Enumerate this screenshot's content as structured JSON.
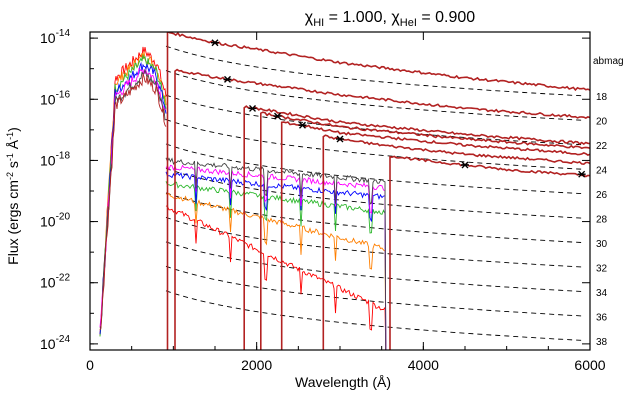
{
  "chart_data": {
    "type": "line",
    "title_parts": {
      "chi": "χ",
      "sub_hi": "HI",
      "val_hi": " = 1.000, ",
      "sub_hei": "HeI",
      "val_hei": " = 0.900"
    },
    "xlabel": "Wavelength (Å)",
    "ylabel_parts": {
      "main": "Flux (ergs cm",
      "e1": "-2",
      "s": " s",
      "e2": "-1",
      "a": " Å",
      "e3": "-1",
      "close": ")"
    },
    "xlim": [
      0,
      6000
    ],
    "ylim_log10": [
      -24.2,
      -13.8
    ],
    "x_ticks": [
      {
        "value": 0,
        "label": "0"
      },
      {
        "value": 2000,
        "label": "2000"
      },
      {
        "value": 4000,
        "label": "4000"
      },
      {
        "value": 6000,
        "label": "6000"
      }
    ],
    "y_ticks": [
      {
        "exp": -14,
        "base": "10",
        "sup": "-14"
      },
      {
        "exp": -16,
        "base": "10",
        "sup": "-16"
      },
      {
        "exp": -18,
        "base": "10",
        "sup": "-18"
      },
      {
        "exp": -20,
        "base": "10",
        "sup": "-20"
      },
      {
        "exp": -22,
        "base": "10",
        "sup": "-22"
      },
      {
        "exp": -24,
        "base": "10",
        "sup": "-24"
      }
    ],
    "abmag_header": "abmag",
    "abmag_lines": [
      {
        "label": "18",
        "log_at_6000": -15.9
      },
      {
        "label": "20",
        "log_at_6000": -16.7
      },
      {
        "label": "22",
        "log_at_6000": -17.5
      },
      {
        "label": "24",
        "log_at_6000": -18.3
      },
      {
        "label": "26",
        "log_at_6000": -19.1
      },
      {
        "label": "28",
        "log_at_6000": -19.9
      },
      {
        "label": "30",
        "log_at_6000": -20.7
      },
      {
        "label": "32",
        "log_at_6000": -21.5
      },
      {
        "label": "34",
        "log_at_6000": -22.3
      },
      {
        "label": "36",
        "log_at_6000": -23.1
      },
      {
        "label": "38",
        "log_at_6000": -23.9
      }
    ],
    "redshifted_spectra": [
      {
        "color": "#b22222",
        "cutoff": 930,
        "x": [
          930,
          1500,
          3000,
          4500,
          6000
        ],
        "log": [
          -13.8,
          -14.15,
          -14.8,
          -15.3,
          -15.7
        ]
      },
      {
        "color": "#b22222",
        "cutoff": 1020,
        "x": [
          1020,
          1650,
          3000,
          4500,
          6000
        ],
        "log": [
          -15.05,
          -15.35,
          -15.85,
          -16.3,
          -16.6
        ]
      },
      {
        "color": "#b22222",
        "cutoff": 1850,
        "x": [
          1850,
          2000,
          3000,
          4500,
          6000
        ],
        "log": [
          -16.25,
          -16.3,
          -16.75,
          -17.15,
          -17.45
        ]
      },
      {
        "color": "#b22222",
        "cutoff": 2050,
        "x": [
          2050,
          2250,
          3000,
          4500,
          6000
        ],
        "log": [
          -16.45,
          -16.55,
          -16.9,
          -17.3,
          -17.6
        ]
      },
      {
        "color": "#b22222",
        "cutoff": 2300,
        "x": [
          2300,
          2550,
          3000,
          4500,
          6000
        ],
        "log": [
          -16.75,
          -16.85,
          -17.1,
          -17.5,
          -17.8
        ]
      },
      {
        "color": "#b22222",
        "cutoff": 2800,
        "x": [
          2800,
          3000,
          3500,
          4500,
          6000
        ],
        "log": [
          -17.2,
          -17.3,
          -17.5,
          -17.8,
          -18.1
        ]
      },
      {
        "color": "#b22222",
        "cutoff": 3600,
        "x": [
          3600,
          4000,
          4500,
          5000,
          6000
        ],
        "log": [
          -17.85,
          -18.0,
          -18.15,
          -18.3,
          -18.5
        ]
      }
    ],
    "markers": [
      {
        "x": 1500,
        "log": -14.15
      },
      {
        "x": 1650,
        "log": -15.35
      },
      {
        "x": 1950,
        "log": -16.3
      },
      {
        "x": 2250,
        "log": -16.55
      },
      {
        "x": 2550,
        "log": -16.85
      },
      {
        "x": 3000,
        "log": -17.3
      },
      {
        "x": 4500,
        "log": -18.15
      },
      {
        "x": 5900,
        "log": -18.45
      }
    ],
    "colored_spectra": [
      {
        "color": "#ff0000",
        "cutoff": 3550,
        "log_at_912": -19.5,
        "log_at_cutoff": -22.9
      },
      {
        "color": "#ff7f00",
        "cutoff": 3550,
        "log_at_912": -19.1,
        "log_at_cutoff": -20.9
      },
      {
        "color": "#2eb82e",
        "cutoff": 3550,
        "log_at_912": -18.75,
        "log_at_cutoff": -19.7
      },
      {
        "color": "#0000ff",
        "cutoff": 3550,
        "log_at_912": -18.45,
        "log_at_cutoff": -19.2
      },
      {
        "color": "#ff00ff",
        "cutoff": 3550,
        "log_at_912": -18.2,
        "log_at_cutoff": -18.9
      },
      {
        "color": "#444444",
        "cutoff": 3550,
        "log_at_912": -18.0,
        "log_at_cutoff": -18.7
      }
    ]
  }
}
